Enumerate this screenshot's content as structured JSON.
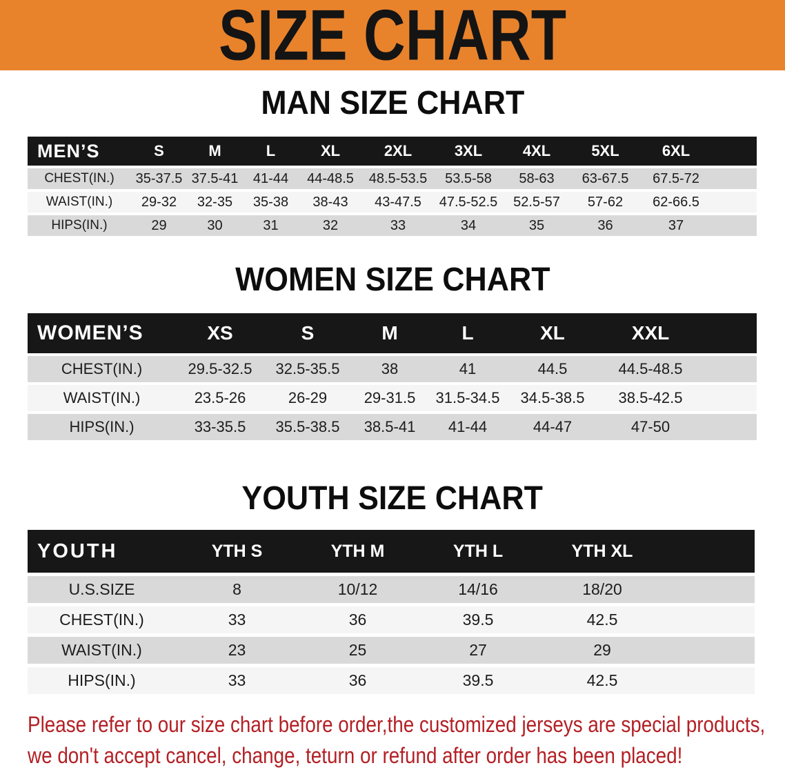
{
  "banner": {
    "title": "SIZE CHART",
    "bg_color": "#e8832c"
  },
  "headings": {
    "men": "MAN SIZE CHART",
    "women": "WOMEN SIZE CHART",
    "youth": "YOUTH SIZE CHART"
  },
  "men": {
    "label": "MEN’S",
    "sizes": [
      "S",
      "M",
      "L",
      "XL",
      "2XL",
      "3XL",
      "4XL",
      "5XL",
      "6XL"
    ],
    "rows": [
      {
        "label": "CHEST(IN.)",
        "values": [
          "35-37.5",
          "37.5-41",
          "41-44",
          "44-48.5",
          "48.5-53.5",
          "53.5-58",
          "58-63",
          "63-67.5",
          "67.5-72"
        ]
      },
      {
        "label": "WAIST(IN.)",
        "values": [
          "29-32",
          "32-35",
          "35-38",
          "38-43",
          "43-47.5",
          "47.5-52.5",
          "52.5-57",
          "57-62",
          "62-66.5"
        ]
      },
      {
        "label": "HIPS(IN.)",
        "values": [
          "29",
          "30",
          "31",
          "32",
          "33",
          "34",
          "35",
          "36",
          "37"
        ]
      }
    ]
  },
  "women": {
    "label": "WOMEN’S",
    "sizes": [
      "XS",
      "S",
      "M",
      "L",
      "XL",
      "XXL"
    ],
    "rows": [
      {
        "label": "CHEST(IN.)",
        "values": [
          "29.5-32.5",
          "32.5-35.5",
          "38",
          "41",
          "44.5",
          "44.5-48.5"
        ]
      },
      {
        "label": "WAIST(IN.)",
        "values": [
          "23.5-26",
          "26-29",
          "29-31.5",
          "31.5-34.5",
          "34.5-38.5",
          "38.5-42.5"
        ]
      },
      {
        "label": "HIPS(IN.)",
        "values": [
          "33-35.5",
          "35.5-38.5",
          "38.5-41",
          "41-44",
          "44-47",
          "47-50"
        ]
      }
    ]
  },
  "youth": {
    "label": "YOUTH",
    "sizes": [
      "YTH S",
      "YTH M",
      "YTH L",
      "YTH XL"
    ],
    "rows": [
      {
        "label": "U.S.SIZE",
        "values": [
          "8",
          "10/12",
          "14/16",
          "18/20"
        ]
      },
      {
        "label": "CHEST(IN.)",
        "values": [
          "33",
          "36",
          "39.5",
          "42.5"
        ]
      },
      {
        "label": "WAIST(IN.)",
        "values": [
          "23",
          "25",
          "27",
          "29"
        ]
      },
      {
        "label": "HIPS(IN.)",
        "values": [
          "33",
          "36",
          "39.5",
          "42.5"
        ]
      }
    ]
  },
  "footer": {
    "line1": "Please refer to our size chart before order,the customized jerseys are special products,",
    "line2": "we don't accept cancel, change, teturn or refund after order has been placed!",
    "color": "#b32025"
  }
}
